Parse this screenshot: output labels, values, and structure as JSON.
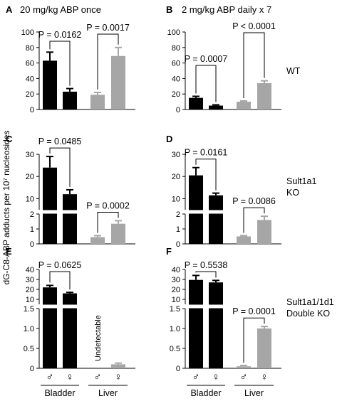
{
  "ylabel": "dG-C8-ABP adducts per 10⁷ nucleosides",
  "sex_labels": [
    "♂",
    "♀",
    "♂",
    "♀"
  ],
  "group_labels": [
    "Bladder",
    "Liver"
  ],
  "colors": {
    "bladder": "#000000",
    "liver": "#a6a6a6",
    "axis": "#000000"
  },
  "chart_data": [
    {
      "panel": "A",
      "title": "20 mg/kg ABP once",
      "side_label": "WT",
      "type": "bar",
      "categories": [
        "Bladder ♂",
        "Bladder ♀",
        "Liver ♂",
        "Liver ♀"
      ],
      "values": [
        63,
        23,
        19,
        69
      ],
      "errors": [
        11,
        4,
        3,
        11
      ],
      "ylim": [
        0,
        100
      ],
      "yticks": [
        "0",
        "20",
        "40",
        "60",
        "80",
        "100"
      ],
      "annotations": [
        {
          "text": "P = 0.0162",
          "bars": [
            0,
            1
          ]
        },
        {
          "text": "P = 0.0017",
          "bars": [
            2,
            3
          ]
        }
      ]
    },
    {
      "panel": "B",
      "title": "2 mg/kg ABP daily x 7",
      "type": "bar",
      "categories": [
        "Bladder ♂",
        "Bladder ♀",
        "Liver ♂",
        "Liver ♀"
      ],
      "values": [
        15,
        5,
        10,
        34
      ],
      "errors": [
        2,
        1,
        1,
        3
      ],
      "ylim": [
        0,
        100
      ],
      "yticks": [
        "0",
        "20",
        "40",
        "60",
        "80",
        "100"
      ],
      "annotations": [
        {
          "text": "P = 0.0007",
          "bars": [
            0,
            1
          ]
        },
        {
          "text": "P < 0.0001",
          "bars": [
            2,
            3
          ]
        }
      ]
    },
    {
      "panel": "C",
      "side_label": "Sult1a1 KO",
      "type": "bar",
      "broken_axis": true,
      "categories": [
        "Bladder ♂",
        "Bladder ♀",
        "Liver ♂",
        "Liver ♀"
      ],
      "values": [
        24,
        12,
        0.45,
        1.35
      ],
      "errors": [
        5,
        2,
        0.1,
        0.2
      ],
      "lower_range": [
        0,
        2
      ],
      "upper_range": [
        5,
        30
      ],
      "yticks_lower": [
        "0",
        "1",
        "2"
      ],
      "yticks_upper": [
        "10",
        "20",
        "30"
      ],
      "annotations": [
        {
          "text": "P = 0.0485",
          "bars": [
            0,
            1
          ]
        },
        {
          "text": "P = 0.0002",
          "bars": [
            2,
            3
          ]
        }
      ]
    },
    {
      "panel": "D",
      "type": "bar",
      "broken_axis": true,
      "categories": [
        "Bladder ♂",
        "Bladder ♀",
        "Liver ♂",
        "Liver ♀"
      ],
      "values": [
        20.5,
        11.5,
        0.5,
        1.6
      ],
      "errors": [
        3.5,
        1,
        0.05,
        0.25
      ],
      "lower_range": [
        0,
        2
      ],
      "upper_range": [
        5,
        30
      ],
      "yticks_lower": [
        "0",
        "1",
        "2"
      ],
      "yticks_upper": [
        "10",
        "20",
        "30"
      ],
      "annotations": [
        {
          "text": "P = 0.0161",
          "bars": [
            0,
            1
          ]
        },
        {
          "text": "P = 0.0086",
          "bars": [
            2,
            3
          ]
        }
      ]
    },
    {
      "panel": "E",
      "side_label": "Sult1a1/1d1 Double KO",
      "type": "bar",
      "broken_axis": true,
      "categories": [
        "Bladder ♂",
        "Bladder ♀",
        "Liver ♂",
        "Liver ♀"
      ],
      "values": [
        22,
        16,
        null,
        0.1
      ],
      "errors": [
        2,
        1,
        null,
        0.03
      ],
      "lower_range": [
        0,
        1.5
      ],
      "upper_range": [
        5,
        40
      ],
      "yticks_lower": [
        "0",
        "0.5",
        "1.0",
        "1.5"
      ],
      "yticks_upper": [
        "10",
        "20",
        "30",
        "40"
      ],
      "undetectable_label": "Undetectable",
      "annotations": [
        {
          "text": "P = 0.0625",
          "bars": [
            0,
            1
          ]
        }
      ]
    },
    {
      "panel": "F",
      "type": "bar",
      "broken_axis": true,
      "categories": [
        "Bladder ♂",
        "Bladder ♀",
        "Liver ♂",
        "Liver ♀"
      ],
      "values": [
        29.5,
        27,
        0.05,
        1.0
      ],
      "errors": [
        4.5,
        2,
        0.02,
        0.05
      ],
      "lower_range": [
        0,
        1.5
      ],
      "upper_range": [
        5,
        40
      ],
      "yticks_lower": [
        "0",
        "0.5",
        "1.0",
        "1.5"
      ],
      "yticks_upper": [
        "10",
        "20",
        "30",
        "40"
      ],
      "annotations": [
        {
          "text": "P = 0.5538",
          "bars": [
            0,
            1
          ]
        },
        {
          "text": "P = 0.0001",
          "bars": [
            2,
            3
          ]
        }
      ]
    }
  ]
}
